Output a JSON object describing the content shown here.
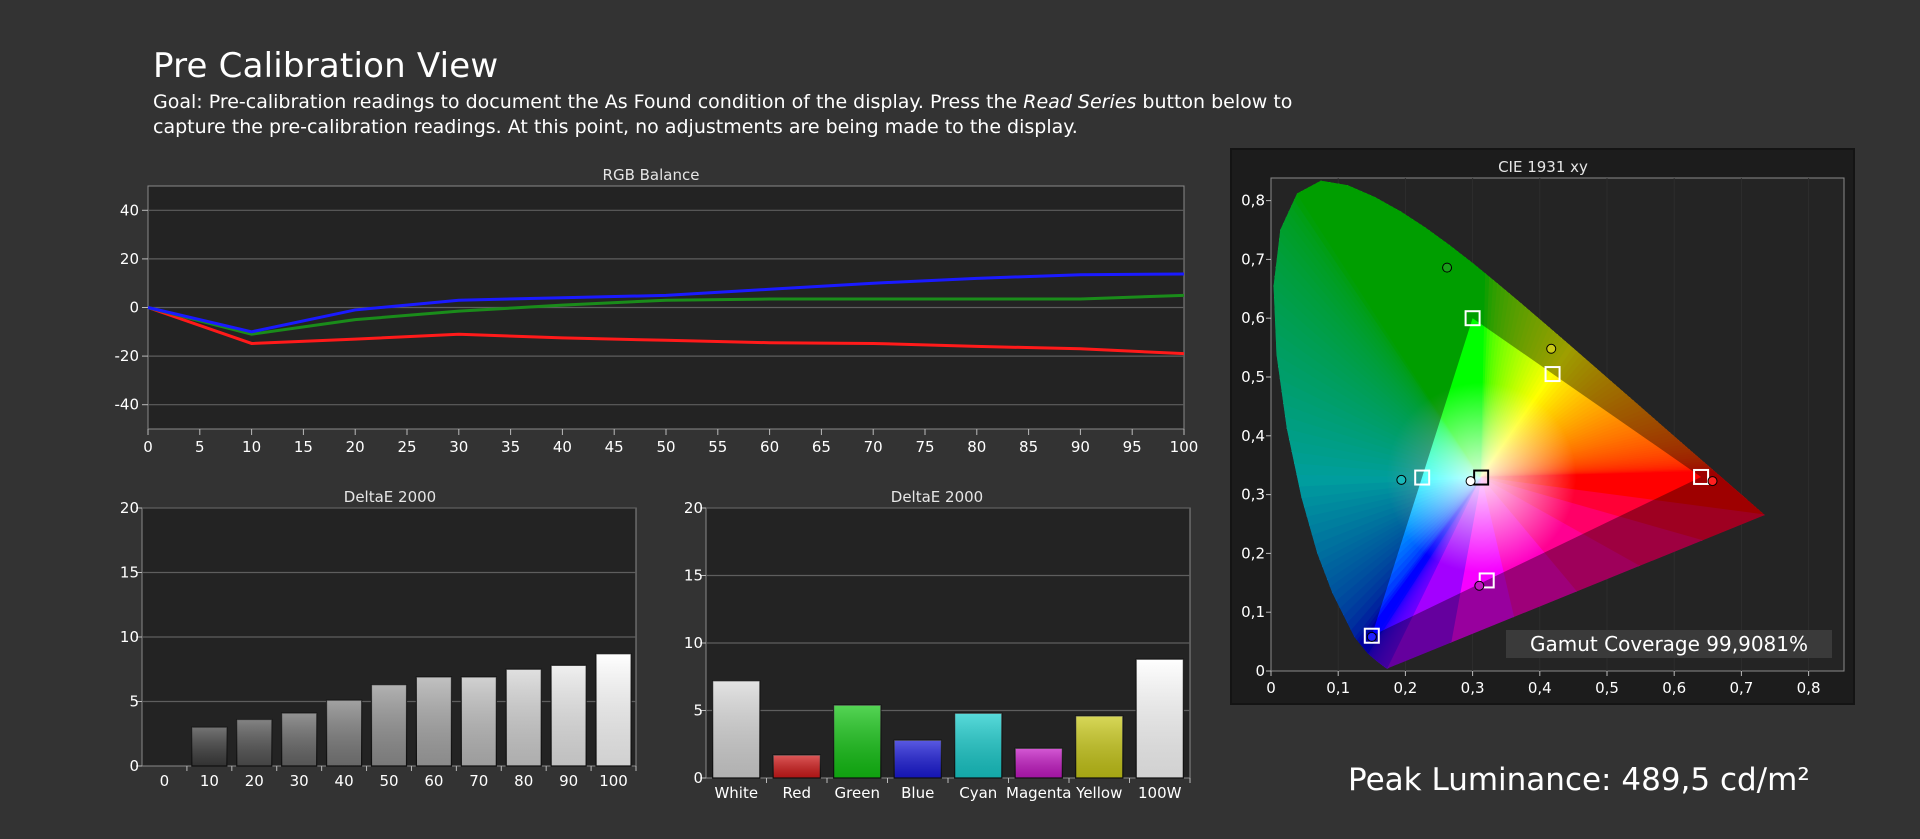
{
  "header": {
    "title": "Pre Calibration View",
    "goal_part1": "Goal: Pre-calibration readings to document the As Found condition of the display. Press the ",
    "goal_emph": "Read Series",
    "goal_part2": " button below to capture the pre-calibration readings. At this point, no adjustments are being made to the display."
  },
  "colors": {
    "background": "#333333",
    "plot_bg": "#232323",
    "grid": "#5a5a5a",
    "red": "#ff1a1a",
    "green": "#1a8c1a",
    "blue": "#1a1aff"
  },
  "gamut_coverage": "Gamut Coverage 99,9081%",
  "peak_luminance": "Peak Luminance: 489,5 cd/m²",
  "chart_data": [
    {
      "id": "rgb",
      "type": "line",
      "title": "RGB Balance",
      "xlim": [
        0,
        100
      ],
      "ylim": [
        -50,
        50
      ],
      "x_ticks": [
        0,
        5,
        10,
        15,
        20,
        25,
        30,
        35,
        40,
        45,
        50,
        55,
        60,
        65,
        70,
        75,
        80,
        85,
        90,
        95,
        100
      ],
      "y_ticks": [
        40,
        20,
        0,
        -20,
        -40
      ],
      "x": [
        0,
        10,
        20,
        30,
        40,
        50,
        60,
        70,
        80,
        90,
        100
      ],
      "series": [
        {
          "color": "#ff1a1a",
          "values": [
            0,
            -14.8,
            -13,
            -11,
            -12.5,
            -13.5,
            -14.5,
            -14.8,
            -16,
            -17,
            -19
          ]
        },
        {
          "color": "#1a8c1a",
          "values": [
            0,
            -11,
            -5,
            -1.5,
            1,
            3,
            3.5,
            3.5,
            3.5,
            3.5,
            5
          ]
        },
        {
          "color": "#1a1aff",
          "values": [
            0,
            -10,
            -1,
            3,
            4,
            5,
            7.5,
            10,
            12,
            13.5,
            13.8
          ]
        }
      ]
    },
    {
      "id": "de_gray",
      "type": "bar",
      "title": "DeltaE 2000",
      "ylim": [
        0,
        20
      ],
      "y_ticks": [
        0,
        5,
        10,
        15,
        20
      ],
      "categories": [
        "0",
        "10",
        "20",
        "30",
        "40",
        "50",
        "60",
        "70",
        "80",
        "90",
        "100"
      ],
      "values": [
        0,
        3,
        3.6,
        4.1,
        5.1,
        6.3,
        6.9,
        6.9,
        7.5,
        7.8,
        8.7
      ]
    },
    {
      "id": "de_color",
      "type": "bar",
      "title": "DeltaE 2000",
      "ylim": [
        0,
        20
      ],
      "y_ticks": [
        0,
        5,
        10,
        15,
        20
      ],
      "categories": [
        "White",
        "Red",
        "Green",
        "Blue",
        "Cyan",
        "Magenta",
        "Yellow",
        "100W"
      ],
      "values": [
        7.2,
        1.7,
        5.4,
        2.8,
        4.8,
        2.2,
        4.6,
        8.8
      ],
      "bar_colors": [
        "#d8d8d8",
        "#d11a1a",
        "#13c413",
        "#1a1ad8",
        "#18cccc",
        "#c418c4",
        "#c9c918",
        "#ffffff"
      ]
    },
    {
      "id": "cie",
      "type": "scatter",
      "title": "CIE 1931 xy",
      "xlim": [
        0,
        0.85
      ],
      "ylim": [
        0,
        0.85
      ],
      "x_ticks": [
        "0",
        "0,1",
        "0,2",
        "0,3",
        "0,4",
        "0,5",
        "0,6",
        "0,7",
        "0,8"
      ],
      "y_ticks": [
        "0",
        "0,1",
        "0,2",
        "0,3",
        "0,4",
        "0,5",
        "0,6",
        "0,7",
        "0,8"
      ],
      "targets": [
        {
          "x": 0.64,
          "y": 0.33
        },
        {
          "x": 0.3,
          "y": 0.6
        },
        {
          "x": 0.15,
          "y": 0.06
        },
        {
          "x": 0.225,
          "y": 0.329
        },
        {
          "x": 0.321,
          "y": 0.154
        },
        {
          "x": 0.419,
          "y": 0.505
        },
        {
          "x": 0.3127,
          "y": 0.329
        }
      ],
      "measured": [
        {
          "x": 0.657,
          "y": 0.323,
          "color": "#ff2020"
        },
        {
          "x": 0.262,
          "y": 0.686,
          "color": "#1aa01a"
        },
        {
          "x": 0.15,
          "y": 0.058,
          "color": "#2020ff"
        },
        {
          "x": 0.194,
          "y": 0.325,
          "color": "#18b8b8"
        },
        {
          "x": 0.31,
          "y": 0.145,
          "color": "#c018c0"
        },
        {
          "x": 0.417,
          "y": 0.548,
          "color": "#c9c918"
        },
        {
          "x": 0.297,
          "y": 0.323,
          "color": "#ffffff"
        }
      ]
    }
  ]
}
